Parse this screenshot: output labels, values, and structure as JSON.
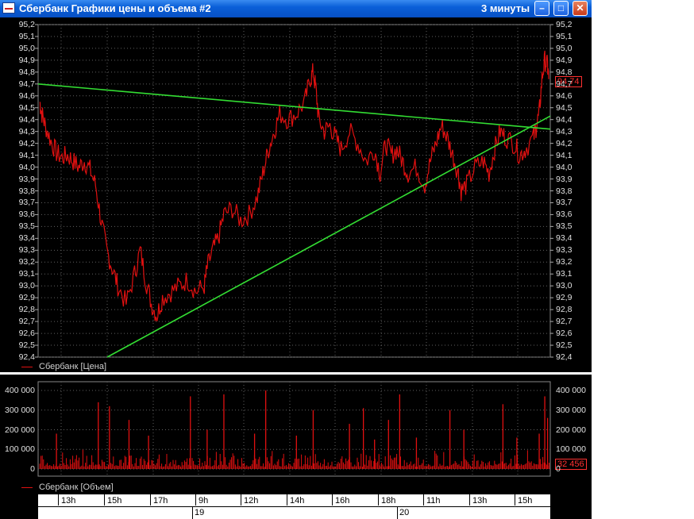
{
  "window": {
    "title": "Сбербанк Графики цены и объема #2",
    "timeframe": "3 минуты",
    "minimize_glyph": "–",
    "maximize_glyph": "□",
    "close_glyph": "✕",
    "app_icon": "chart-window-icon"
  },
  "colors": {
    "background": "#000000",
    "price": "#e01010",
    "trend": "#33dd33",
    "grid": "#606060",
    "text": "#e0e0e0"
  },
  "chart_data": [
    {
      "type": "line",
      "series": [
        {
          "name": "Сбербанк [Цена]",
          "color": "#e01010"
        }
      ],
      "ylim": [
        92.4,
        95.2
      ],
      "y_ticks": [
        "92,4",
        "92,5",
        "92,6",
        "92,7",
        "92,8",
        "92,9",
        "93,0",
        "93,1",
        "93,2",
        "93,3",
        "93,4",
        "93,5",
        "93,6",
        "93,7",
        "93,8",
        "93,9",
        "94,0",
        "94,1",
        "94,2",
        "94,3",
        "94,4",
        "94,5",
        "94,6",
        "94,7",
        "94,8",
        "94,9",
        "95,0",
        "95,1",
        "95,2"
      ],
      "last_value": "94,74",
      "price_path": [
        [
          0,
          94.55
        ],
        [
          0.04,
          94.45
        ],
        [
          0.1,
          94.35
        ],
        [
          0.2,
          94.22
        ],
        [
          0.3,
          94.12
        ],
        [
          0.4,
          94.08
        ],
        [
          0.5,
          94.1
        ],
        [
          0.6,
          94.05
        ],
        [
          0.7,
          94.0
        ],
        [
          0.8,
          94.05
        ],
        [
          0.9,
          93.98
        ],
        [
          1.0,
          93.85
        ],
        [
          1.1,
          93.55
        ],
        [
          1.2,
          93.3
        ],
        [
          1.3,
          93.15
        ],
        [
          1.4,
          93.0
        ],
        [
          1.55,
          92.85
        ],
        [
          1.7,
          93.1
        ],
        [
          1.8,
          93.3
        ],
        [
          1.9,
          93.05
        ],
        [
          2.0,
          92.85
        ],
        [
          2.1,
          92.75
        ],
        [
          2.2,
          92.9
        ],
        [
          2.35,
          92.95
        ],
        [
          2.5,
          93.0
        ],
        [
          2.65,
          93.05
        ],
        [
          2.8,
          92.95
        ],
        [
          2.95,
          93.0
        ],
        [
          3.0,
          93.15
        ],
        [
          3.1,
          93.3
        ],
        [
          3.2,
          93.4
        ],
        [
          3.3,
          93.6
        ],
        [
          3.45,
          93.65
        ],
        [
          3.6,
          93.55
        ],
        [
          3.75,
          93.6
        ],
        [
          3.9,
          93.75
        ],
        [
          4.0,
          93.95
        ],
        [
          4.1,
          94.15
        ],
        [
          4.2,
          94.3
        ],
        [
          4.3,
          94.45
        ],
        [
          4.45,
          94.4
        ],
        [
          4.6,
          94.45
        ],
        [
          4.75,
          94.55
        ],
        [
          4.85,
          94.75
        ],
        [
          4.9,
          94.8
        ],
        [
          4.95,
          94.65
        ],
        [
          5.0,
          94.4
        ],
        [
          5.1,
          94.3
        ],
        [
          5.2,
          94.35
        ],
        [
          5.3,
          94.25
        ],
        [
          5.4,
          94.15
        ],
        [
          5.55,
          94.3
        ],
        [
          5.7,
          94.2
        ],
        [
          5.85,
          94.05
        ],
        [
          6.0,
          94.15
        ],
        [
          6.1,
          93.95
        ],
        [
          6.2,
          94.2
        ],
        [
          6.3,
          94.1
        ],
        [
          6.4,
          94.15
        ],
        [
          6.5,
          94.05
        ],
        [
          6.6,
          93.95
        ],
        [
          6.75,
          94.0
        ],
        [
          6.9,
          93.85
        ],
        [
          7.0,
          94.05
        ],
        [
          7.1,
          94.2
        ],
        [
          7.2,
          94.35
        ],
        [
          7.3,
          94.25
        ],
        [
          7.4,
          94.1
        ],
        [
          7.5,
          93.95
        ],
        [
          7.55,
          93.8
        ],
        [
          7.65,
          93.85
        ],
        [
          7.8,
          94.0
        ],
        [
          7.95,
          94.05
        ],
        [
          8.05,
          93.95
        ],
        [
          8.15,
          94.15
        ],
        [
          8.25,
          94.3
        ],
        [
          8.35,
          94.25
        ],
        [
          8.5,
          94.2
        ],
        [
          8.6,
          94.1
        ],
        [
          8.7,
          94.15
        ],
        [
          8.85,
          94.25
        ],
        [
          8.9,
          94.35
        ],
        [
          8.95,
          94.45
        ],
        [
          9.0,
          94.75
        ],
        [
          9.05,
          94.9
        ],
        [
          9.1,
          94.85
        ],
        [
          9.12,
          94.74
        ]
      ]
    },
    {
      "type": "bar",
      "series": [
        {
          "name": "Сбербанк [Объем]",
          "color": "#e01010"
        }
      ],
      "ylim": [
        0,
        400000
      ],
      "y_ticks": [
        "0",
        "100 000",
        "200 000",
        "300 000",
        "400 000"
      ],
      "last_value": "32 456",
      "volume_spikes": [
        [
          0.3,
          180000
        ],
        [
          1.05,
          340000
        ],
        [
          1.25,
          320000
        ],
        [
          1.6,
          250000
        ],
        [
          1.95,
          170000
        ],
        [
          2.7,
          370000
        ],
        [
          3.0,
          200000
        ],
        [
          3.3,
          380000
        ],
        [
          3.85,
          180000
        ],
        [
          4.05,
          400000
        ],
        [
          4.6,
          170000
        ],
        [
          4.9,
          300000
        ],
        [
          5.55,
          230000
        ],
        [
          5.8,
          310000
        ],
        [
          6.0,
          150000
        ],
        [
          6.25,
          250000
        ],
        [
          6.45,
          380000
        ],
        [
          6.75,
          160000
        ],
        [
          7.35,
          300000
        ],
        [
          7.6,
          200000
        ],
        [
          8.3,
          330000
        ],
        [
          8.55,
          160000
        ],
        [
          8.95,
          180000
        ],
        [
          9.05,
          370000
        ],
        [
          9.1,
          260000
        ]
      ]
    }
  ],
  "time_axis": {
    "hours": [
      "13h",
      "15h",
      "17h",
      "9h",
      "12h",
      "14h",
      "16h",
      "18h",
      "11h",
      "13h",
      "15h"
    ],
    "days": [
      "19",
      "20"
    ]
  }
}
